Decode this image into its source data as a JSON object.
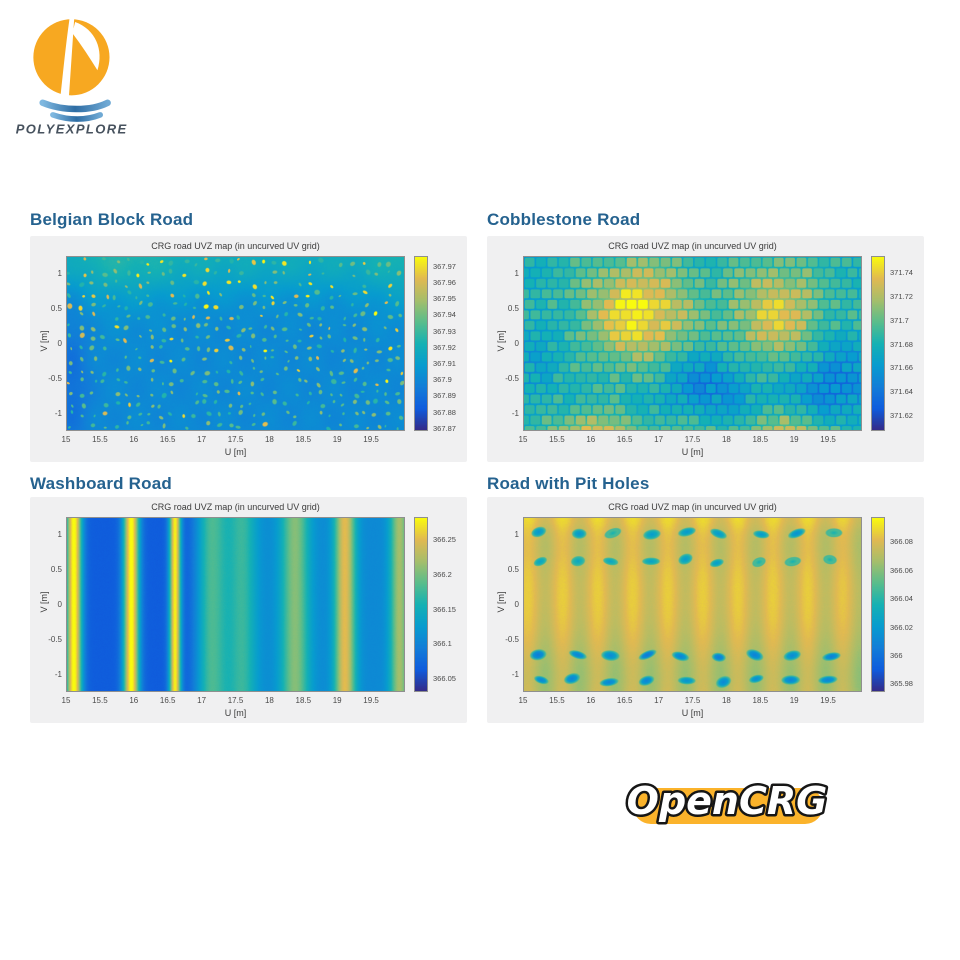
{
  "branding": {
    "polyexplore_text": "POLYEXPLORE",
    "opencrg_text": "OpenCRG",
    "logo_orange": "#F7A821",
    "logo_water_blue": "#4A90C4",
    "polyexplore_text_color": "#47525E",
    "opencrg_pill_yellow": "#FBB32B",
    "opencrg_text_fill": "#FFFFFF",
    "opencrg_text_outline": "#161616"
  },
  "colors": {
    "page_bg": "#FFFFFF",
    "panel_bg": "#F0F0F1",
    "heading": "#25628F",
    "tick_text": "#4A4A4A",
    "axis_box": "#8F8F8F",
    "colormap": [
      "#352A87",
      "#0F5CDD",
      "#127DD8",
      "#079CCF",
      "#15B1B4",
      "#59BD8C",
      "#A5BE6B",
      "#E1B952",
      "#F9FB0E"
    ]
  },
  "chart_data": [
    {
      "type": "heatmap",
      "pattern": "belgian-block",
      "heading": "Belgian Block Road",
      "title": "CRG road UVZ map (in uncurved UV grid)",
      "xlabel": "U [m]",
      "ylabel": "V [m]",
      "x_range": [
        15,
        20
      ],
      "y_range": [
        -1.25,
        1.25
      ],
      "x_ticks": [
        "15",
        "15.5",
        "16",
        "16.5",
        "17",
        "17.5",
        "18",
        "18.5",
        "19",
        "19.5"
      ],
      "y_ticks": [
        "1",
        "0.5",
        "0",
        "-0.5",
        "-1"
      ],
      "colorbar_ticks": [
        "367.97",
        "367.96",
        "367.95",
        "367.94",
        "367.93",
        "367.92",
        "367.91",
        "367.9",
        "367.89",
        "367.88",
        "367.87"
      ],
      "clim": [
        367.868,
        367.976
      ],
      "description": "Blue road surface densely dotted with small cyan-green and yellow block tops; greener band along the top edge, darker blue at the left edge."
    },
    {
      "type": "heatmap",
      "pattern": "cobblestone",
      "heading": "Cobblestone Road",
      "title": "CRG road UVZ map (in uncurved UV grid)",
      "xlabel": "U [m]",
      "ylabel": "V [m]",
      "x_range": [
        15,
        20
      ],
      "y_range": [
        -1.25,
        1.25
      ],
      "x_ticks": [
        "15",
        "15.5",
        "16",
        "16.5",
        "17",
        "17.5",
        "18",
        "18.5",
        "19",
        "19.5"
      ],
      "y_ticks": [
        "1",
        "0.5",
        "0",
        "-0.5",
        "-1"
      ],
      "colorbar_ticks": [
        "371.74",
        "371.72",
        "371.7",
        "371.68",
        "371.66",
        "371.64",
        "371.62"
      ],
      "clim": [
        371.607,
        371.753
      ],
      "stone_size_uv": [
        0.168,
        0.152
      ],
      "bright_spots": [
        {
          "u": 16.7,
          "v": 0.45,
          "amp": 0.44,
          "su": 0.55,
          "sv": 0.5
        },
        {
          "u": 18.75,
          "v": 0.42,
          "amp": 0.36,
          "su": 0.45,
          "sv": 0.5
        }
      ],
      "dark_spots": [
        {
          "u": 17.7,
          "v": -0.6,
          "amp": -0.22,
          "su": 0.5,
          "sv": 0.35
        },
        {
          "u": 19.55,
          "v": -0.55,
          "amp": -0.25,
          "su": 0.45,
          "sv": 0.4
        },
        {
          "u": 15.15,
          "v": -0.2,
          "amp": -0.08,
          "su": 0.3,
          "sv": 0.5
        }
      ],
      "warm_spots_bottom": [
        {
          "u": 16.05,
          "v": -1.35,
          "amp": 0.34,
          "su": 0.5,
          "sv": 0.22
        },
        {
          "u": 18.95,
          "v": -1.35,
          "amp": 0.3,
          "su": 0.45,
          "sv": 0.22
        },
        {
          "u": 17.5,
          "v": -1.35,
          "amp": 0.12,
          "su": 0.4,
          "sv": 0.2
        }
      ],
      "description": "Teal-green mosaic of cobblestones with two bright yellow-orange mounds near V=0.5 (around U=16.7 and U=18.7) and darker blue stone clusters near V=-0.5."
    },
    {
      "type": "heatmap",
      "pattern": "washboard",
      "heading": "Washboard Road",
      "title": "CRG road UVZ map (in uncurved UV grid)",
      "xlabel": "U [m]",
      "ylabel": "V [m]",
      "x_range": [
        15,
        20
      ],
      "y_range": [
        -1.25,
        1.25
      ],
      "x_ticks": [
        "15",
        "15.5",
        "16",
        "16.5",
        "17",
        "17.5",
        "18",
        "18.5",
        "19",
        "19.5"
      ],
      "y_ticks": [
        "1",
        "0.5",
        "0",
        "-0.5",
        "-1"
      ],
      "colorbar_ticks": [
        "366.25",
        "366.2",
        "366.15",
        "366.1",
        "366.05"
      ],
      "clim": [
        366.03,
        366.282
      ],
      "base_left": 0.13,
      "base_right": 0.3,
      "base_transition": [
        16.75,
        17.15
      ],
      "stripes": [
        {
          "u": 15.1,
          "amp": 0.88,
          "sigma": 0.085
        },
        {
          "u": 15.95,
          "amp": 0.88,
          "sigma": 0.085
        },
        {
          "u": 16.6,
          "amp": 0.85,
          "sigma": 0.062
        },
        {
          "u": 17.15,
          "amp": 0.3,
          "sigma": 0.17
        },
        {
          "u": 17.6,
          "amp": 0.26,
          "sigma": 0.15
        },
        {
          "u": 18.38,
          "amp": 0.4,
          "sigma": 0.15
        },
        {
          "u": 19.12,
          "amp": 0.58,
          "sigma": 0.11
        },
        {
          "u": 19.93,
          "amp": 0.45,
          "sigma": 0.1
        }
      ],
      "description": "Uniform vertical ripples: three sharp yellow ridges near U=15.1, 16.0, 16.6 over dark blue, then broader faint cyan/green ridges near U=17.2, 17.6, 18.4, 19.1, 19.9 over medium blue."
    },
    {
      "type": "heatmap",
      "pattern": "pit-holes",
      "heading": "Road with Pit Holes",
      "title": "CRG road UVZ map (in uncurved UV grid)",
      "xlabel": "U [m]",
      "ylabel": "V [m]",
      "x_range": [
        15,
        20
      ],
      "y_range": [
        -1.25,
        1.25
      ],
      "x_ticks": [
        "15",
        "15.5",
        "16",
        "16.5",
        "17",
        "17.5",
        "18",
        "18.5",
        "19",
        "19.5"
      ],
      "y_ticks": [
        "1",
        "0.5",
        "0",
        "-0.5",
        "-1"
      ],
      "colorbar_ticks": [
        "366.08",
        "366.06",
        "366.04",
        "366.02",
        "366",
        "365.98"
      ],
      "clim": [
        365.974,
        366.097
      ],
      "hole_rows": [
        {
          "v": 1.02,
          "shade": 0.34
        },
        {
          "v": 0.63,
          "shade": 0.4
        },
        {
          "v": -0.75,
          "shade": 0.26
        },
        {
          "v": -1.1,
          "shade": 0.3
        }
      ],
      "holes_per_row": 10,
      "hole_start_u": 15.22,
      "hole_spacing_u": 0.54,
      "description": "Yellow-orange road with faint pale vertical stripes and four rows of blue elliptical pit holes near V=1.0, 0.63, -0.75 and -1.1; greenish tint toward the bottom."
    }
  ]
}
